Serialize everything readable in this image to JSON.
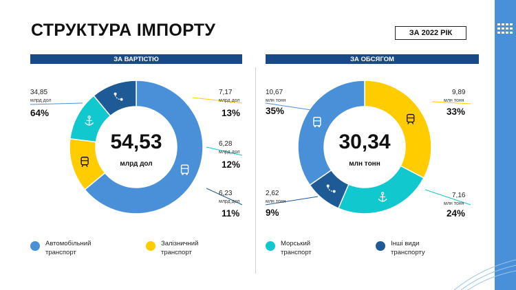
{
  "title": "СТРУКТУРА ІМПОРТУ",
  "year_badge": "ЗА 2022 РІК",
  "colors": {
    "auto": "#4a90d9",
    "rail": "#ffcc00",
    "sea": "#12c8cf",
    "other": "#1e5a96",
    "header": "#1a4a86"
  },
  "chart_data": [
    {
      "type": "pie",
      "title": "ЗА ВАРТІСТЮ",
      "center_value": "54,53",
      "center_unit": "млрд дол",
      "slices": [
        {
          "category": "Автомобільний транспорт",
          "value": "34,85",
          "unit": "млрд дол",
          "percent": 64,
          "pct_label": "64%",
          "icon": "truck-icon"
        },
        {
          "category": "Залізничний транспорт",
          "value": "7,17",
          "unit": "млрд дол",
          "percent": 13,
          "pct_label": "13%",
          "icon": "train-icon"
        },
        {
          "category": "Морський транспорт",
          "value": "6,28",
          "unit": "млрд дол",
          "percent": 12,
          "pct_label": "12%",
          "icon": "anchor-icon"
        },
        {
          "category": "Інші види транспорту",
          "value": "6,23",
          "unit": "млрд дол",
          "percent": 11,
          "pct_label": "11%",
          "icon": "route-icon"
        }
      ]
    },
    {
      "type": "pie",
      "title": "ЗА ОБСЯГОМ",
      "center_value": "30,34",
      "center_unit": "млн тонн",
      "slices": [
        {
          "category": "Залізничний транспорт",
          "value": "9,89",
          "unit": "млн тонн",
          "percent": 33,
          "pct_label": "33%",
          "icon": "train-icon"
        },
        {
          "category": "Морський транспорт",
          "value": "7,16",
          "unit": "млн тонн",
          "percent": 24,
          "pct_label": "24%",
          "icon": "anchor-icon"
        },
        {
          "category": "Інші види транспорту",
          "value": "2,62",
          "unit": "млн тонн",
          "percent": 9,
          "pct_label": "9%",
          "icon": "route-icon"
        },
        {
          "category": "Автомобільний транспорт",
          "value": "10,67",
          "unit": "млн тонн",
          "percent": 35,
          "pct_label": "35%",
          "icon": "truck-icon"
        }
      ]
    }
  ],
  "legend": [
    {
      "line1": "Автомобільний",
      "line2": "транспорт",
      "icon": "truck-icon"
    },
    {
      "line1": "Залізничний",
      "line2": "транспорт",
      "icon": "train-icon"
    },
    {
      "line1": "Морський",
      "line2": "транспорт",
      "icon": "anchor-icon"
    },
    {
      "line1": "Інші види",
      "line2": "транспорту",
      "icon": "route-icon"
    }
  ]
}
